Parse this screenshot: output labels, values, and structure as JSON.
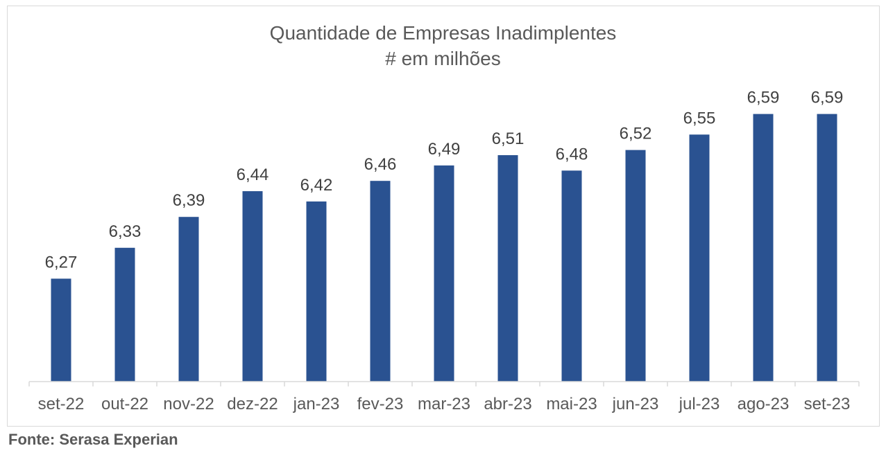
{
  "chart_data": {
    "type": "bar",
    "title": "Quantidade de Empresas Inadimplentes",
    "subtitle": "# em milhões",
    "categories": [
      "set-22",
      "out-22",
      "nov-22",
      "dez-22",
      "jan-23",
      "fev-23",
      "mar-23",
      "abr-23",
      "mai-23",
      "jun-23",
      "jul-23",
      "ago-23",
      "set-23"
    ],
    "values": [
      6.27,
      6.33,
      6.39,
      6.44,
      6.42,
      6.46,
      6.49,
      6.51,
      6.48,
      6.52,
      6.55,
      6.59,
      6.59
    ],
    "value_labels": [
      "6,27",
      "6,33",
      "6,39",
      "6,44",
      "6,42",
      "6,46",
      "6,49",
      "6,51",
      "6,48",
      "6,52",
      "6,55",
      "6,59",
      "6,59"
    ],
    "xlabel": "",
    "ylabel": "",
    "ylim": [
      6.07,
      6.65
    ],
    "grid": false,
    "bar_color": "#2a5291"
  },
  "source": "Fonte: Serasa Experian"
}
